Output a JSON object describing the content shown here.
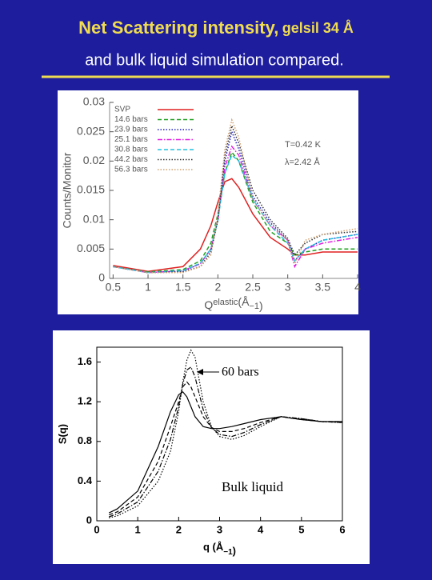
{
  "slide": {
    "title": "Net Scattering intensity,",
    "title_suffix": "gelsil 34 Å",
    "subtitle": "and bulk liquid simulation compared."
  },
  "chart_data": [
    {
      "type": "line",
      "y_label": "Counts/Monitor",
      "x_label": [
        "Q",
        "elastic",
        "(Å",
        "−1",
        ")"
      ],
      "annotations": [
        "T=0.42 K",
        "λ=2.42 Å"
      ],
      "x": [
        0.5,
        1,
        1.5,
        1.75,
        1.9,
        2,
        2.1,
        2.2,
        2.3,
        2.5,
        2.75,
        3,
        3.1,
        3.25,
        3.5,
        4
      ],
      "xlim": [
        0.45,
        4
      ],
      "xticks": [
        0.5,
        1,
        1.5,
        2,
        2.5,
        3,
        3.5,
        4
      ],
      "ylim": [
        0,
        0.03
      ],
      "yticks": [
        0,
        0.005,
        0.01,
        0.015,
        0.02,
        0.025,
        0.03
      ],
      "legend": "upper left",
      "series": [
        {
          "name": "SVP",
          "color": "#e02020",
          "style": "solid",
          "values": [
            0.0022,
            0.0012,
            0.002,
            0.005,
            0.009,
            0.013,
            0.0165,
            0.017,
            0.0155,
            0.011,
            0.007,
            0.005,
            0.004,
            0.004,
            0.0045,
            0.0045
          ]
        },
        {
          "name": "14.6 bars",
          "color": "#20a020",
          "style": "dashed",
          "values": [
            0.002,
            0.0011,
            0.0015,
            0.003,
            0.006,
            0.011,
            0.018,
            0.0215,
            0.02,
            0.013,
            0.008,
            0.006,
            0.004,
            0.0045,
            0.005,
            0.005
          ]
        },
        {
          "name": "23.9 bars",
          "color": "#2020c0",
          "style": "dotted",
          "values": [
            0.002,
            0.001,
            0.0012,
            0.0025,
            0.005,
            0.01,
            0.02,
            0.025,
            0.022,
            0.014,
            0.0095,
            0.0065,
            0.003,
            0.005,
            0.0065,
            0.0075
          ]
        },
        {
          "name": "25.1 bars",
          "color": "#e020e0",
          "style": "dash-dot",
          "values": [
            0.002,
            0.001,
            0.0013,
            0.0025,
            0.005,
            0.01,
            0.019,
            0.0225,
            0.021,
            0.0135,
            0.009,
            0.0065,
            0.002,
            0.005,
            0.006,
            0.007
          ]
        },
        {
          "name": "30.8 bars",
          "color": "#20c0e0",
          "style": "dashed",
          "values": [
            0.002,
            0.001,
            0.0013,
            0.0026,
            0.005,
            0.01,
            0.018,
            0.021,
            0.02,
            0.0135,
            0.009,
            0.006,
            0.003,
            0.005,
            0.0065,
            0.0075
          ]
        },
        {
          "name": "44.2 bars",
          "color": "#303030",
          "style": "dotted",
          "values": [
            0.002,
            0.001,
            0.0011,
            0.002,
            0.0045,
            0.01,
            0.021,
            0.026,
            0.023,
            0.015,
            0.01,
            0.0068,
            0.004,
            0.006,
            0.0075,
            0.008
          ]
        },
        {
          "name": "56.3 bars",
          "color": "#d0a070",
          "style": "dotted",
          "values": [
            0.002,
            0.001,
            0.001,
            0.002,
            0.004,
            0.011,
            0.022,
            0.027,
            0.024,
            0.0135,
            0.009,
            0.0065,
            0.0025,
            0.0065,
            0.0075,
            0.0085
          ]
        }
      ]
    },
    {
      "type": "line",
      "y_label": "S(q)",
      "x_label": [
        "q (Å",
        "−1",
        ")"
      ],
      "annotations": [
        "60 bars",
        "Bulk liquid"
      ],
      "x": [
        0.3,
        0.5,
        1,
        1.5,
        1.8,
        2,
        2.1,
        2.2,
        2.3,
        2.4,
        2.6,
        2.8,
        3,
        3.3,
        3.6,
        4,
        4.5,
        5,
        5.5,
        6
      ],
      "xlim": [
        0,
        6
      ],
      "xticks": [
        0,
        1,
        2,
        3,
        4,
        5,
        6
      ],
      "ylim": [
        0,
        1.75
      ],
      "yticks": [
        0,
        0.4,
        0.8,
        1.2,
        1.6
      ],
      "series": [
        {
          "color": "#000000",
          "style": "solid",
          "values": [
            0.08,
            0.12,
            0.3,
            0.75,
            1.1,
            1.27,
            1.3,
            1.25,
            1.15,
            1.05,
            0.95,
            0.93,
            0.93,
            0.95,
            0.98,
            1.02,
            1.05,
            1.02,
            1.0,
            1.0
          ]
        },
        {
          "color": "#000000",
          "style": "dashed",
          "values": [
            0.06,
            0.09,
            0.24,
            0.6,
            0.95,
            1.2,
            1.35,
            1.4,
            1.35,
            1.25,
            1.05,
            0.94,
            0.9,
            0.9,
            0.93,
            0.99,
            1.05,
            1.02,
            1.0,
            1.0
          ]
        },
        {
          "color": "#000000",
          "style": "dash-dot",
          "values": [
            0.04,
            0.07,
            0.19,
            0.5,
            0.82,
            1.15,
            1.38,
            1.52,
            1.55,
            1.45,
            1.12,
            0.94,
            0.87,
            0.85,
            0.89,
            0.97,
            1.05,
            1.03,
            1.0,
            0.99
          ]
        },
        {
          "color": "#000000",
          "style": "dotted",
          "values": [
            0.03,
            0.05,
            0.15,
            0.4,
            0.7,
            1.1,
            1.4,
            1.62,
            1.72,
            1.65,
            1.2,
            0.95,
            0.85,
            0.82,
            0.86,
            0.95,
            1.05,
            1.03,
            1.0,
            0.99
          ]
        }
      ]
    }
  ]
}
